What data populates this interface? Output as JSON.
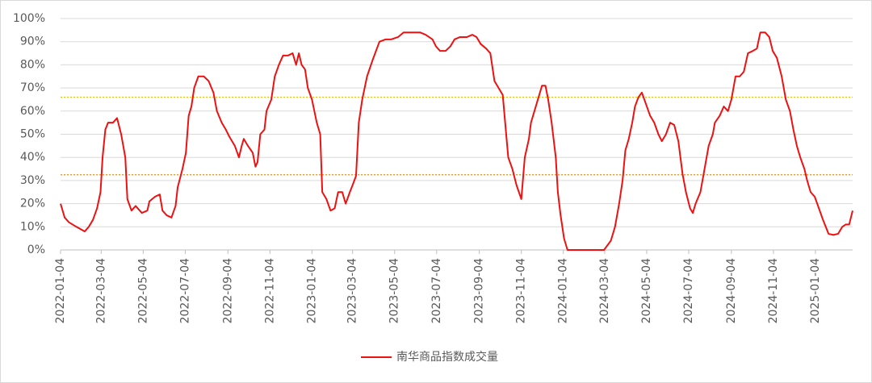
{
  "chart_data": {
    "type": "line",
    "x": [
      "2022-01-04",
      "2022-01-10",
      "2022-01-16",
      "2022-01-27",
      "2022-02-08",
      "2022-02-14",
      "2022-02-20",
      "2022-02-26",
      "2022-03-03",
      "2022-03-06",
      "2022-03-10",
      "2022-03-14",
      "2022-03-21",
      "2022-03-27",
      "2022-04-02",
      "2022-04-08",
      "2022-04-11",
      "2022-04-17",
      "2022-04-23",
      "2022-05-02",
      "2022-05-10",
      "2022-05-13",
      "2022-05-21",
      "2022-05-28",
      "2022-06-01",
      "2022-06-07",
      "2022-06-14",
      "2022-06-20",
      "2022-06-23",
      "2022-06-30",
      "2022-07-05",
      "2022-07-09",
      "2022-07-13",
      "2022-07-17",
      "2022-07-23",
      "2022-07-31",
      "2022-08-07",
      "2022-08-14",
      "2022-08-19",
      "2022-08-26",
      "2022-09-01",
      "2022-09-06",
      "2022-09-14",
      "2022-09-20",
      "2022-09-24",
      "2022-09-27",
      "2022-10-03",
      "2022-10-10",
      "2022-10-14",
      "2022-10-17",
      "2022-10-21",
      "2022-10-27",
      "2022-10-30",
      "2022-11-06",
      "2022-11-11",
      "2022-11-17",
      "2022-11-23",
      "2022-11-30",
      "2022-12-07",
      "2022-12-12",
      "2022-12-16",
      "2022-12-20",
      "2022-12-25",
      "2022-12-29",
      "2023-01-04",
      "2023-01-11",
      "2023-01-16",
      "2023-01-19",
      "2023-01-25",
      "2023-01-31",
      "2023-02-06",
      "2023-02-11",
      "2023-02-17",
      "2023-02-22",
      "2023-02-28",
      "2023-03-04",
      "2023-03-09",
      "2023-03-13",
      "2023-03-18",
      "2023-03-25",
      "2023-04-02",
      "2023-04-12",
      "2023-04-21",
      "2023-04-29",
      "2023-05-09",
      "2023-05-17",
      "2023-05-29",
      "2023-06-10",
      "2023-06-18",
      "2023-06-28",
      "2023-07-03",
      "2023-07-09",
      "2023-07-17",
      "2023-07-24",
      "2023-07-30",
      "2023-08-07",
      "2023-08-17",
      "2023-08-25",
      "2023-08-31",
      "2023-09-06",
      "2023-09-14",
      "2023-09-20",
      "2023-09-26",
      "2023-10-02",
      "2023-10-08",
      "2023-10-13",
      "2023-10-16",
      "2023-10-22",
      "2023-10-28",
      "2023-11-04",
      "2023-11-09",
      "2023-11-15",
      "2023-11-18",
      "2023-11-23",
      "2023-11-28",
      "2023-12-04",
      "2023-12-09",
      "2023-12-13",
      "2023-12-18",
      "2023-12-24",
      "2023-12-27",
      "2023-12-31",
      "2024-01-05",
      "2024-01-10",
      "2024-01-18",
      "2024-01-30",
      "2024-02-11",
      "2024-02-25",
      "2024-03-03",
      "2024-03-08",
      "2024-03-13",
      "2024-03-19",
      "2024-03-25",
      "2024-03-30",
      "2024-04-03",
      "2024-04-08",
      "2024-04-13",
      "2024-04-17",
      "2024-04-22",
      "2024-04-27",
      "2024-05-03",
      "2024-05-09",
      "2024-05-15",
      "2024-05-21",
      "2024-05-26",
      "2024-06-01",
      "2024-06-07",
      "2024-06-13",
      "2024-06-19",
      "2024-06-25",
      "2024-06-30",
      "2024-07-06",
      "2024-07-10",
      "2024-07-14",
      "2024-07-21",
      "2024-07-27",
      "2024-08-02",
      "2024-08-08",
      "2024-08-11",
      "2024-08-18",
      "2024-08-24",
      "2024-08-30",
      "2024-09-04",
      "2024-09-10",
      "2024-09-16",
      "2024-09-22",
      "2024-09-28",
      "2024-10-05",
      "2024-10-11",
      "2024-10-16",
      "2024-10-23",
      "2024-10-29",
      "2024-11-03",
      "2024-11-09",
      "2024-11-16",
      "2024-11-22",
      "2024-11-28",
      "2024-12-03",
      "2024-12-08",
      "2024-12-13",
      "2024-12-19",
      "2024-12-23",
      "2024-12-28",
      "2025-01-03",
      "2025-01-09",
      "2025-01-15",
      "2025-01-19",
      "2025-01-23",
      "2025-01-30",
      "2025-02-06",
      "2025-02-12",
      "2025-02-17",
      "2025-02-22",
      "2025-02-27"
    ],
    "series": [
      {
        "name": "南华商品指数成交量",
        "color": "#ee1111",
        "values": [
          20,
          14,
          12,
          10,
          8,
          10,
          13,
          18,
          25,
          40,
          52,
          55,
          55,
          57,
          50,
          40,
          22,
          17,
          19,
          16,
          17,
          21,
          23,
          24,
          17,
          15,
          14,
          19,
          27,
          35,
          42,
          58,
          62,
          70,
          75,
          75,
          73,
          68,
          60,
          55,
          52,
          49,
          45,
          40,
          45,
          48,
          45,
          42,
          36,
          38,
          50,
          52,
          60,
          65,
          75,
          80,
          84,
          84,
          85,
          80,
          85,
          80,
          78,
          70,
          65,
          55,
          50,
          25,
          22,
          17,
          18,
          25,
          25,
          20,
          25,
          28,
          32,
          55,
          65,
          75,
          82,
          90,
          91,
          91,
          92,
          94,
          94,
          94,
          93,
          91,
          88,
          86,
          86,
          88,
          91,
          92,
          92,
          93,
          92,
          89,
          87,
          85,
          73,
          70,
          67,
          50,
          40,
          35,
          28,
          22,
          40,
          48,
          55,
          60,
          65,
          71,
          71,
          65,
          55,
          40,
          25,
          15,
          5,
          0,
          0,
          0,
          0,
          0,
          0,
          2,
          4,
          10,
          20,
          30,
          43,
          48,
          55,
          62,
          66,
          68,
          63,
          58,
          55,
          50,
          47,
          50,
          55,
          54,
          47,
          33,
          25,
          18,
          16,
          20,
          25,
          35,
          45,
          50,
          55,
          58,
          62,
          60,
          65,
          75,
          75,
          77,
          85,
          86,
          87,
          94,
          94,
          92,
          86,
          83,
          75,
          65,
          60,
          52,
          45,
          40,
          35,
          30,
          25,
          23,
          18,
          13,
          10,
          7,
          6.5,
          7,
          10,
          11,
          11,
          17
        ]
      }
    ],
    "xlim": [
      "2022-01-04",
      "2025-02-27"
    ],
    "xticks": [
      "2022-01-04",
      "2022-03-04",
      "2022-05-04",
      "2022-07-04",
      "2022-09-04",
      "2022-11-04",
      "2023-01-04",
      "2023-03-04",
      "2023-05-04",
      "2023-07-04",
      "2023-09-04",
      "2023-11-04",
      "2024-01-04",
      "2024-03-04",
      "2024-05-04",
      "2024-07-04",
      "2024-09-04",
      "2024-11-04",
      "2025-01-04"
    ],
    "ylim": [
      0,
      100
    ],
    "yticks": [
      {
        "value": 0,
        "label": "0%"
      },
      {
        "value": 10,
        "label": "10%"
      },
      {
        "value": 20,
        "label": "20%"
      },
      {
        "value": 30,
        "label": "30%"
      },
      {
        "value": 40,
        "label": "40%"
      },
      {
        "value": 50,
        "label": "50%"
      },
      {
        "value": 60,
        "label": "60%"
      },
      {
        "value": 70,
        "label": "70%"
      },
      {
        "value": 80,
        "label": "80%"
      },
      {
        "value": 90,
        "label": "90%"
      },
      {
        "value": 100,
        "label": "100%"
      }
    ],
    "grid": true,
    "hlines": [
      {
        "value": 66,
        "color": "#f2c200"
      },
      {
        "value": 32.5,
        "color": "#ee8a1a"
      }
    ],
    "legend": "bottom"
  }
}
